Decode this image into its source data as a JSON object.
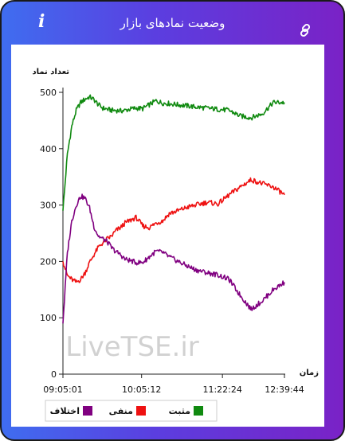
{
  "header": {
    "title": "وضعیت نمادهای بازار",
    "info_icon": "i",
    "link_icon": "link-icon"
  },
  "watermark": "LiveTSE.ir",
  "chart_data": {
    "type": "line",
    "ylabel": "تعداد نماد",
    "xlabel": "زمان",
    "ylim": [
      0,
      500
    ],
    "y_ticks": [
      0,
      100,
      200,
      300,
      400,
      500
    ],
    "x_ticks": [
      "09:05:01",
      "10:05:12",
      "11:22:24",
      "12:39:44"
    ],
    "x": [
      0,
      2,
      4,
      6,
      8,
      10,
      12,
      14,
      16,
      18,
      20,
      22,
      24,
      26,
      28,
      30,
      33,
      36,
      39,
      42,
      45,
      48,
      52,
      56,
      60,
      65,
      70,
      75,
      80,
      85,
      90,
      95,
      100
    ],
    "series": [
      {
        "name": "مثبت",
        "color": "#108a10",
        "values": [
          290,
          390,
          440,
          468,
          482,
          488,
          492,
          487,
          478,
          472,
          470,
          468,
          468,
          467,
          468,
          470,
          472,
          471,
          478,
          485,
          481,
          480,
          478,
          476,
          474,
          472,
          470,
          468,
          458,
          455,
          462,
          482,
          482
        ]
      },
      {
        "name": "منفی",
        "color": "#ee1111",
        "values": [
          200,
          175,
          168,
          163,
          168,
          180,
          198,
          212,
          225,
          233,
          240,
          245,
          255,
          260,
          268,
          272,
          278,
          263,
          260,
          268,
          272,
          285,
          290,
          296,
          300,
          305,
          302,
          318,
          332,
          345,
          338,
          332,
          318
        ]
      },
      {
        "name": "اختلاف",
        "color": "#800080",
        "values": [
          90,
          215,
          272,
          300,
          316,
          312,
          295,
          262,
          245,
          240,
          235,
          224,
          217,
          212,
          204,
          202,
          198,
          198,
          208,
          218,
          216,
          208,
          200,
          192,
          185,
          180,
          176,
          168,
          140,
          115,
          130,
          150,
          163
        ]
      }
    ],
    "legend": "bottom",
    "grid": false
  }
}
